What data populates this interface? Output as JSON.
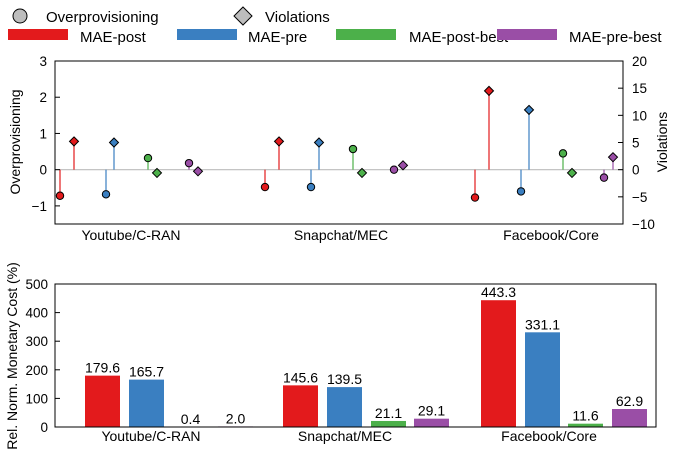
{
  "legend": {
    "markers": [
      {
        "label": "Overprovisioning",
        "shape": "circle"
      },
      {
        "label": "Violations",
        "shape": "diamond"
      }
    ],
    "series": [
      {
        "label": "MAE-post",
        "color": "#e31a1c"
      },
      {
        "label": "MAE-pre",
        "color": "#3a7fc1"
      },
      {
        "label": "MAE-post-best",
        "color": "#4cb04a"
      },
      {
        "label": "MAE-pre-best",
        "color": "#9a4ea6"
      }
    ]
  },
  "chart_data": [
    {
      "type": "scatter",
      "subtype": "lollipop",
      "ylabel": "Overprovisioning",
      "y2label": "Violations",
      "ylim": [
        -1.5,
        3
      ],
      "y2lim": [
        -10,
        20
      ],
      "yticks": [
        "−1",
        "0",
        "1",
        "2",
        "3"
      ],
      "y2ticks": [
        "−10",
        "−5",
        "0",
        "5",
        "10",
        "15",
        "20"
      ],
      "categories": [
        "Youtube/C-RAN",
        "Snapchat/MEC",
        "Facebook/Core"
      ],
      "baseline_color": "#bbbbbb",
      "grid": false,
      "series": [
        {
          "name": "MAE-post",
          "color": "#e31a1c",
          "overprovisioning": [
            -0.72,
            -0.48,
            -0.77
          ],
          "violations": [
            5.2,
            5.2,
            14.5
          ]
        },
        {
          "name": "MAE-pre",
          "color": "#3a7fc1",
          "overprovisioning": [
            -0.68,
            -0.48,
            -0.6
          ],
          "violations": [
            5.0,
            5.0,
            11.0
          ]
        },
        {
          "name": "MAE-post-best",
          "color": "#4cb04a",
          "overprovisioning": [
            0.32,
            0.57,
            0.45
          ],
          "violations": [
            -0.6,
            -0.6,
            -0.6
          ]
        },
        {
          "name": "MAE-pre-best",
          "color": "#9a4ea6",
          "overprovisioning": [
            0.18,
            0.0,
            -0.22
          ],
          "violations": [
            -0.3,
            0.8,
            2.3
          ]
        }
      ]
    },
    {
      "type": "bar",
      "ylabel": "Rel. Norm. Monetary Cost (%)",
      "ylim": [
        0,
        500
      ],
      "yticks": [
        "0",
        "100",
        "200",
        "300",
        "400",
        "500"
      ],
      "categories": [
        "Youtube/C-RAN",
        "Snapchat/MEC",
        "Facebook/Core"
      ],
      "grid": false,
      "series": [
        {
          "name": "MAE-post",
          "color": "#e31a1c",
          "values": [
            179.6,
            145.6,
            443.3
          ],
          "labels": [
            "179.6",
            "145.6",
            "443.3"
          ]
        },
        {
          "name": "MAE-pre",
          "color": "#3a7fc1",
          "values": [
            165.7,
            139.5,
            331.1
          ],
          "labels": [
            "165.7",
            "139.5",
            "331.1"
          ]
        },
        {
          "name": "MAE-post-best",
          "color": "#4cb04a",
          "values": [
            0.4,
            21.1,
            11.6
          ],
          "labels": [
            "0.4",
            "21.1",
            "11.6"
          ]
        },
        {
          "name": "MAE-pre-best",
          "color": "#9a4ea6",
          "values": [
            2.0,
            29.1,
            62.9
          ],
          "labels": [
            "2.0",
            "29.1",
            "62.9"
          ]
        }
      ]
    }
  ]
}
